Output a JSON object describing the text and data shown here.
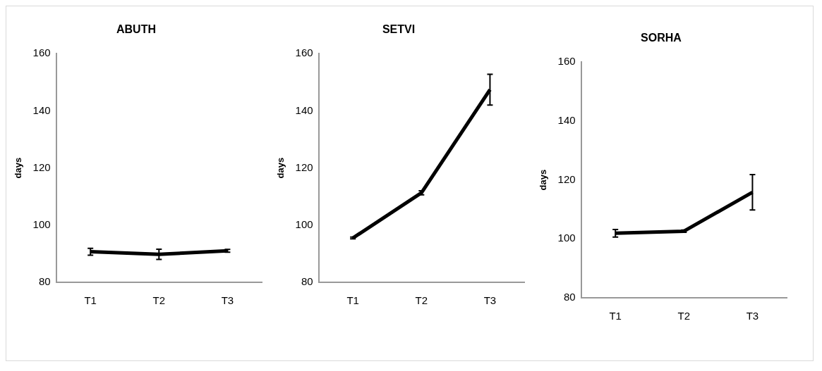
{
  "chart_data": [
    {
      "type": "line",
      "title": "ABUTH",
      "ylabel": "days",
      "categories": [
        "T1",
        "T2",
        "T3"
      ],
      "series": [
        {
          "color": "#000000",
          "values": [
            90.7,
            89.8,
            91.0
          ],
          "errors": [
            1.2,
            1.8,
            0.5
          ]
        }
      ],
      "ylim": [
        80,
        160
      ],
      "yticks": [
        80,
        100,
        120,
        140,
        160
      ],
      "grid": false,
      "legend": false,
      "marker": "none",
      "line_style": "solid"
    },
    {
      "type": "line",
      "title": "SETVI",
      "ylabel": "days",
      "categories": [
        "T1",
        "T2",
        "T3"
      ],
      "series": [
        {
          "color": "#000000",
          "values": [
            95.5,
            111.3,
            147.4
          ],
          "errors": [
            0.3,
            0.7,
            5.4
          ]
        }
      ],
      "ylim": [
        80,
        160
      ],
      "yticks": [
        80,
        100,
        120,
        140,
        160
      ],
      "grid": false,
      "legend": false,
      "marker": "none",
      "line_style": "solid"
    },
    {
      "type": "line",
      "title": "SORHA",
      "ylabel": "days",
      "categories": [
        "T1",
        "T2",
        "T3"
      ],
      "series": [
        {
          "color": "#000000",
          "values": [
            101.9,
            102.6,
            115.8
          ],
          "errors": [
            1.3,
            0.4,
            6.0
          ]
        }
      ],
      "ylim": [
        80,
        160
      ],
      "yticks": [
        80,
        100,
        120,
        140,
        160
      ],
      "grid": false,
      "legend": false,
      "marker": "none",
      "line_style": "solid"
    }
  ]
}
